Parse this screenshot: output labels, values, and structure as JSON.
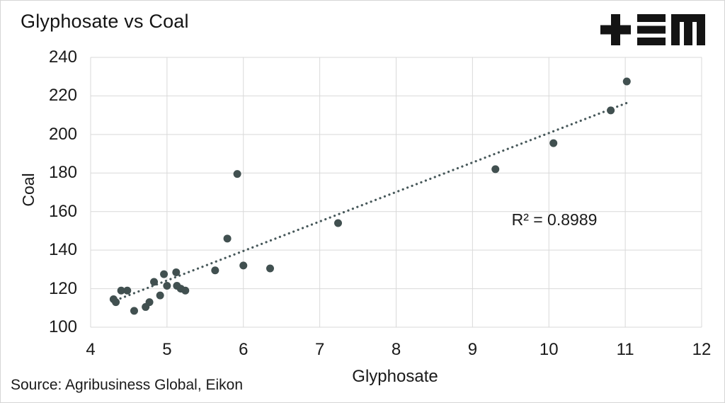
{
  "header": {
    "title": "Glyphosate vs Coal",
    "logo_icon": "plus-triple-bar-m-logo"
  },
  "footer": {
    "source": "Source: Agribusiness Global, Eikon"
  },
  "chart_data": {
    "type": "scatter",
    "title": "Glyphosate vs Coal",
    "xlabel": "Glyphosate",
    "ylabel": "Coal",
    "xlim": [
      4,
      12
    ],
    "ylim": [
      100,
      240
    ],
    "x_ticks": [
      4,
      5,
      6,
      7,
      8,
      9,
      10,
      11,
      12
    ],
    "y_ticks": [
      100,
      120,
      140,
      160,
      180,
      200,
      220,
      240
    ],
    "grid": true,
    "legend": false,
    "annotation": {
      "text": "R² = 0.8989",
      "r_squared": 0.8989
    },
    "points": [
      [
        4.3,
        114.5
      ],
      [
        4.33,
        113
      ],
      [
        4.4,
        119
      ],
      [
        4.48,
        119
      ],
      [
        4.57,
        108.5
      ],
      [
        4.72,
        110.5
      ],
      [
        4.77,
        113
      ],
      [
        4.83,
        123.5
      ],
      [
        4.91,
        116.5
      ],
      [
        4.96,
        127.5
      ],
      [
        5.0,
        121.5
      ],
      [
        5.12,
        128.5
      ],
      [
        5.13,
        121.5
      ],
      [
        5.18,
        120
      ],
      [
        5.24,
        119
      ],
      [
        5.63,
        129.5
      ],
      [
        5.79,
        146
      ],
      [
        5.92,
        179.5
      ],
      [
        6.0,
        132
      ],
      [
        6.35,
        130.5
      ],
      [
        7.24,
        154
      ],
      [
        9.3,
        182
      ],
      [
        10.06,
        195.5
      ],
      [
        10.81,
        212.5
      ],
      [
        11.02,
        227.5
      ]
    ],
    "trendline": {
      "style": "dotted",
      "x1": 4.33,
      "y1": 114,
      "x2": 11.03,
      "y2": 216.5
    },
    "colors": {
      "point": "#415050",
      "trendline": "#47585a",
      "gridline": "#d9d9d9",
      "text": "#161616",
      "background": "#ffffff"
    }
  }
}
